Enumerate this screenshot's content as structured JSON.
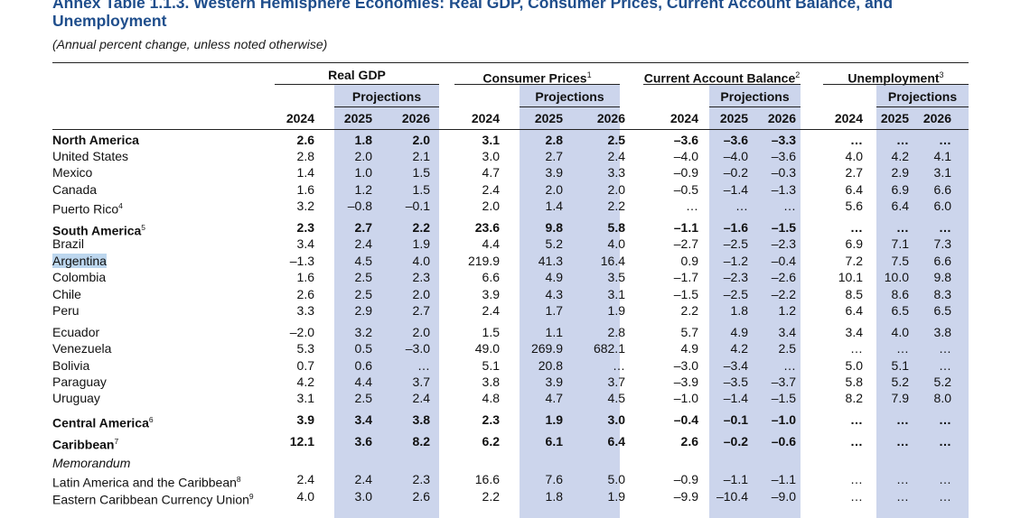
{
  "title": "Annex Table 1.1.3. Western Hemisphere Economies: Real GDP, Consumer Prices, Current Account Balance, and Unemployment",
  "subtitle": "(Annual percent change, unless noted otherwise)",
  "groups": [
    {
      "label": "Real GDP",
      "sup": ""
    },
    {
      "label": "Consumer Prices",
      "sup": "1"
    },
    {
      "label": "Current Account Balance",
      "sup": "2"
    },
    {
      "label": "Unemployment",
      "sup": "3"
    }
  ],
  "projections_label": "Projections",
  "years": [
    "2024",
    "2025",
    "2026"
  ],
  "highlighted_row": "Argentina",
  "colors": {
    "title": "#1f4e8c",
    "projection_shade": "#ccd5ec",
    "selection": "#bcd6ee"
  },
  "rows": [
    {
      "name": "North America",
      "sup": "",
      "style": "bold",
      "values": [
        "2.6",
        "1.8",
        "2.0",
        "3.1",
        "2.8",
        "2.5",
        "–3.6",
        "–3.6",
        "–3.3",
        "…",
        "…",
        "…"
      ]
    },
    {
      "name": "United States",
      "sup": "",
      "style": "normal",
      "values": [
        "2.8",
        "2.0",
        "2.1",
        "3.0",
        "2.7",
        "2.4",
        "–4.0",
        "–4.0",
        "–3.6",
        "4.0",
        "4.2",
        "4.1"
      ]
    },
    {
      "name": "Mexico",
      "sup": "",
      "style": "normal",
      "values": [
        "1.4",
        "1.0",
        "1.5",
        "4.7",
        "3.9",
        "3.3",
        "–0.9",
        "–0.2",
        "–0.3",
        "2.7",
        "2.9",
        "3.1"
      ]
    },
    {
      "name": "Canada",
      "sup": "",
      "style": "normal",
      "values": [
        "1.6",
        "1.2",
        "1.5",
        "2.4",
        "2.0",
        "2.0",
        "–0.5",
        "–1.4",
        "–1.3",
        "6.4",
        "6.9",
        "6.6"
      ]
    },
    {
      "name": "Puerto Rico",
      "sup": "4",
      "style": "normal",
      "values": [
        "3.2",
        "–0.8",
        "–0.1",
        "2.0",
        "1.4",
        "2.2",
        "…",
        "…",
        "…",
        "5.6",
        "6.4",
        "6.0"
      ]
    },
    {
      "name": "South America",
      "sup": "5",
      "style": "bold",
      "values": [
        "2.3",
        "2.7",
        "2.2",
        "23.6",
        "9.8",
        "5.8",
        "–1.1",
        "–1.6",
        "–1.5",
        "…",
        "…",
        "…"
      ]
    },
    {
      "name": "Brazil",
      "sup": "",
      "style": "normal",
      "values": [
        "3.4",
        "2.4",
        "1.9",
        "4.4",
        "5.2",
        "4.0",
        "–2.7",
        "–2.5",
        "–2.3",
        "6.9",
        "7.1",
        "7.3"
      ]
    },
    {
      "name": "Argentina",
      "sup": "",
      "style": "normal",
      "values": [
        "–1.3",
        "4.5",
        "4.0",
        "219.9",
        "41.3",
        "16.4",
        "0.9",
        "–1.2",
        "–0.4",
        "7.2",
        "7.5",
        "6.6"
      ]
    },
    {
      "name": "Colombia",
      "sup": "",
      "style": "normal",
      "values": [
        "1.6",
        "2.5",
        "2.3",
        "6.6",
        "4.9",
        "3.5",
        "–1.7",
        "–2.3",
        "–2.6",
        "10.1",
        "10.0",
        "9.8"
      ]
    },
    {
      "name": "Chile",
      "sup": "",
      "style": "normal",
      "values": [
        "2.6",
        "2.5",
        "2.0",
        "3.9",
        "4.3",
        "3.1",
        "–1.5",
        "–2.5",
        "–2.2",
        "8.5",
        "8.6",
        "8.3"
      ]
    },
    {
      "name": "Peru",
      "sup": "",
      "style": "normal",
      "values": [
        "3.3",
        "2.9",
        "2.7",
        "2.4",
        "1.7",
        "1.9",
        "2.2",
        "1.8",
        "1.2",
        "6.4",
        "6.5",
        "6.5"
      ]
    },
    {
      "name": "Ecuador",
      "sup": "",
      "style": "normal",
      "values": [
        "–2.0",
        "3.2",
        "2.0",
        "1.5",
        "1.1",
        "2.8",
        "5.7",
        "4.9",
        "3.4",
        "3.4",
        "4.0",
        "3.8"
      ]
    },
    {
      "name": "Venezuela",
      "sup": "",
      "style": "normal",
      "values": [
        "5.3",
        "0.5",
        "–3.0",
        "49.0",
        "269.9",
        "682.1",
        "4.9",
        "4.2",
        "2.5",
        "…",
        "…",
        "…"
      ]
    },
    {
      "name": "Bolivia",
      "sup": "",
      "style": "normal",
      "values": [
        "0.7",
        "0.6",
        "…",
        "5.1",
        "20.8",
        "…",
        "–3.0",
        "–3.4",
        "…",
        "5.0",
        "5.1",
        "…"
      ]
    },
    {
      "name": "Paraguay",
      "sup": "",
      "style": "normal",
      "values": [
        "4.2",
        "4.4",
        "3.7",
        "3.8",
        "3.9",
        "3.7",
        "–3.9",
        "–3.5",
        "–3.7",
        "5.8",
        "5.2",
        "5.2"
      ]
    },
    {
      "name": "Uruguay",
      "sup": "",
      "style": "normal",
      "values": [
        "3.1",
        "2.5",
        "2.4",
        "4.8",
        "4.7",
        "4.5",
        "–1.0",
        "–1.4",
        "–1.5",
        "8.2",
        "7.9",
        "8.0"
      ]
    },
    {
      "name": "Central America",
      "sup": "6",
      "style": "bold",
      "values": [
        "3.9",
        "3.4",
        "3.8",
        "2.3",
        "1.9",
        "3.0",
        "–0.4",
        "–0.1",
        "–1.0",
        "…",
        "…",
        "…"
      ]
    },
    {
      "name": "Caribbean",
      "sup": "7",
      "style": "bold",
      "values": [
        "12.1",
        "3.6",
        "8.2",
        "6.2",
        "6.1",
        "6.4",
        "2.6",
        "–0.2",
        "–0.6",
        "…",
        "…",
        "…"
      ]
    },
    {
      "name": "Memorandum",
      "sup": "",
      "style": "italic",
      "values": []
    },
    {
      "name": "Latin America and the Caribbean",
      "sup": "8",
      "style": "normal",
      "values": [
        "2.4",
        "2.4",
        "2.3",
        "16.6",
        "7.6",
        "5.0",
        "–0.9",
        "–1.1",
        "–1.1",
        "…",
        "…",
        "…"
      ]
    },
    {
      "name": "Eastern Caribbean Currency Union",
      "sup": "9",
      "style": "normal",
      "values": [
        "4.0",
        "3.0",
        "2.6",
        "2.2",
        "1.8",
        "1.9",
        "–9.9",
        "–10.4",
        "–9.0",
        "…",
        "…",
        "…"
      ]
    }
  ]
}
